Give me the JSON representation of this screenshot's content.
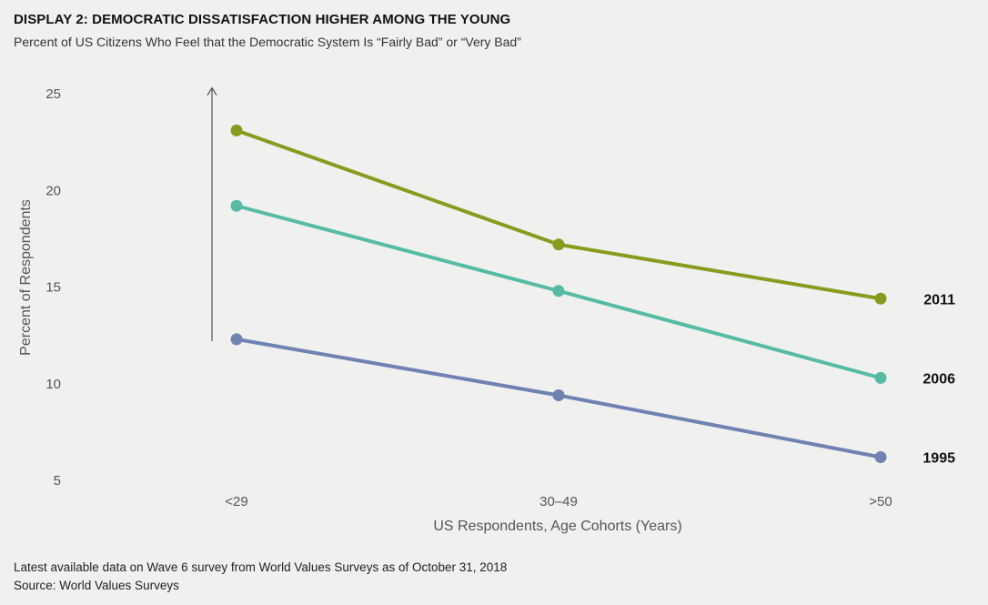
{
  "title": "DISPLAY 2: DEMOCRATIC DISSATISFACTION HIGHER AMONG THE YOUNG",
  "subtitle": "Percent of US Citizens Who Feel that the Democratic System Is “Fairly Bad” or “Very Bad”",
  "footnotes": [
    "Latest available data on Wave 6 survey from World Values Surveys as of October 31, 2018",
    "Source: World Values Surveys"
  ],
  "chart_data": {
    "type": "line",
    "title": "DISPLAY 2: DEMOCRATIC DISSATISFACTION HIGHER AMONG THE YOUNG",
    "subtitle": "Percent of US Citizens Who Feel that the Democratic System Is “Fairly Bad” or “Very Bad”",
    "xlabel": "US Respondents, Age Cohorts (Years)",
    "ylabel": "Percent of Respondents",
    "categories": [
      "<29",
      "30–49",
      ">50"
    ],
    "ylim": [
      5,
      25
    ],
    "yticks": [
      5,
      10,
      15,
      20,
      25
    ],
    "grid": false,
    "legend": "direct labels at right end of lines",
    "annotation": "upward arrow at <29 from 1995 to 2011 values",
    "series": [
      {
        "name": "2011",
        "values": [
          23.1,
          17.2,
          14.4
        ],
        "color": "#8a9a1f"
      },
      {
        "name": "2006",
        "values": [
          19.2,
          14.8,
          10.3
        ],
        "color": "#56bba5"
      },
      {
        "name": "1995",
        "values": [
          12.3,
          9.4,
          6.2
        ],
        "color": "#6f82b2"
      }
    ]
  }
}
